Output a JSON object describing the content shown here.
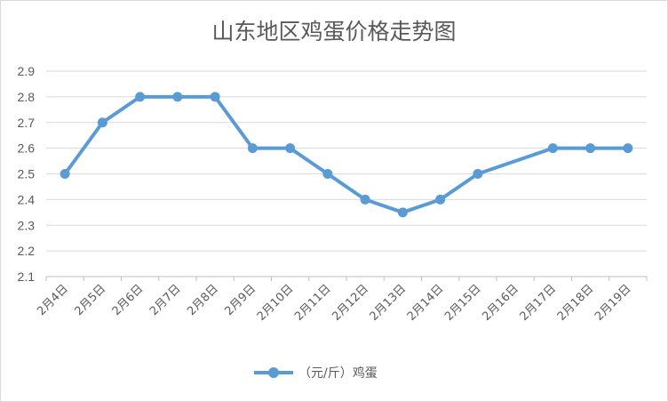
{
  "chart_data": {
    "type": "line",
    "title": "山东地区鸡蛋价格走势图",
    "categories": [
      "2月4日",
      "2月5日",
      "2月6日",
      "2月7日",
      "2月8日",
      "2月9日",
      "2月10日",
      "2月11日",
      "2月12日",
      "2月13日",
      "2月14日",
      "2月15日",
      "2月16日",
      "2月17日",
      "2月18日",
      "2月19日"
    ],
    "series": [
      {
        "name": "（元/斤）鸡蛋",
        "values": [
          2.5,
          2.7,
          2.8,
          2.8,
          2.8,
          2.6,
          2.6,
          2.5,
          2.4,
          2.35,
          2.4,
          2.5,
          null,
          2.6,
          2.6,
          2.6
        ],
        "color": "#5b9bd5"
      }
    ],
    "ylim": [
      2.1,
      2.9
    ],
    "yticks": [
      "2.9",
      "2.8",
      "2.7",
      "2.6",
      "2.5",
      "2.4",
      "2.3",
      "2.2",
      "2.1"
    ],
    "grid": true,
    "legend_position": "bottom"
  }
}
